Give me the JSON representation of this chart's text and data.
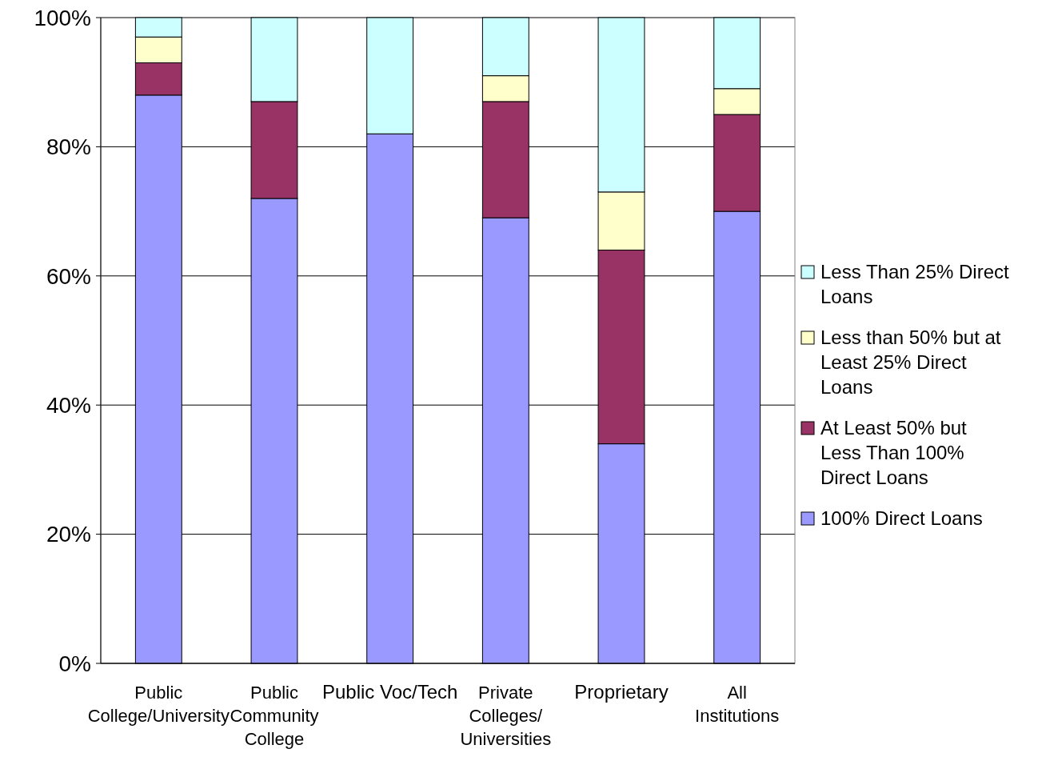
{
  "chart_data": {
    "type": "bar",
    "stacked": true,
    "categories": [
      "Public\nCollege/University",
      "Public\nCommunity\nCollege",
      "Public Voc/Tech",
      "Private\nColleges/\nUniversities",
      "Proprietary",
      "All\nInstitutions"
    ],
    "series": [
      {
        "name": "100% Direct Loans",
        "color": "#9999ff",
        "values": [
          88,
          72,
          82,
          69,
          34,
          70
        ]
      },
      {
        "name": "At Least 50% but Less Than 100% Direct Loans",
        "color": "#993366",
        "values": [
          5,
          15,
          0,
          18,
          30,
          15
        ]
      },
      {
        "name": "Less than 50% but at Least 25% Direct Loans",
        "color": "#ffffcc",
        "values": [
          4,
          0,
          0,
          4,
          9,
          4
        ]
      },
      {
        "name": "Less Than 25% Direct Loans",
        "color": "#ccffff",
        "values": [
          3,
          13,
          18,
          9,
          27,
          11
        ]
      }
    ],
    "ylim": [
      0,
      100
    ],
    "yticks": [
      {
        "value": 0,
        "label": "0%"
      },
      {
        "value": 20,
        "label": "20%"
      },
      {
        "value": 40,
        "label": "40%"
      },
      {
        "value": 60,
        "label": "60%"
      },
      {
        "value": 80,
        "label": "80%"
      },
      {
        "value": 100,
        "label": "100%"
      }
    ],
    "grid": "y",
    "legend": "right"
  }
}
